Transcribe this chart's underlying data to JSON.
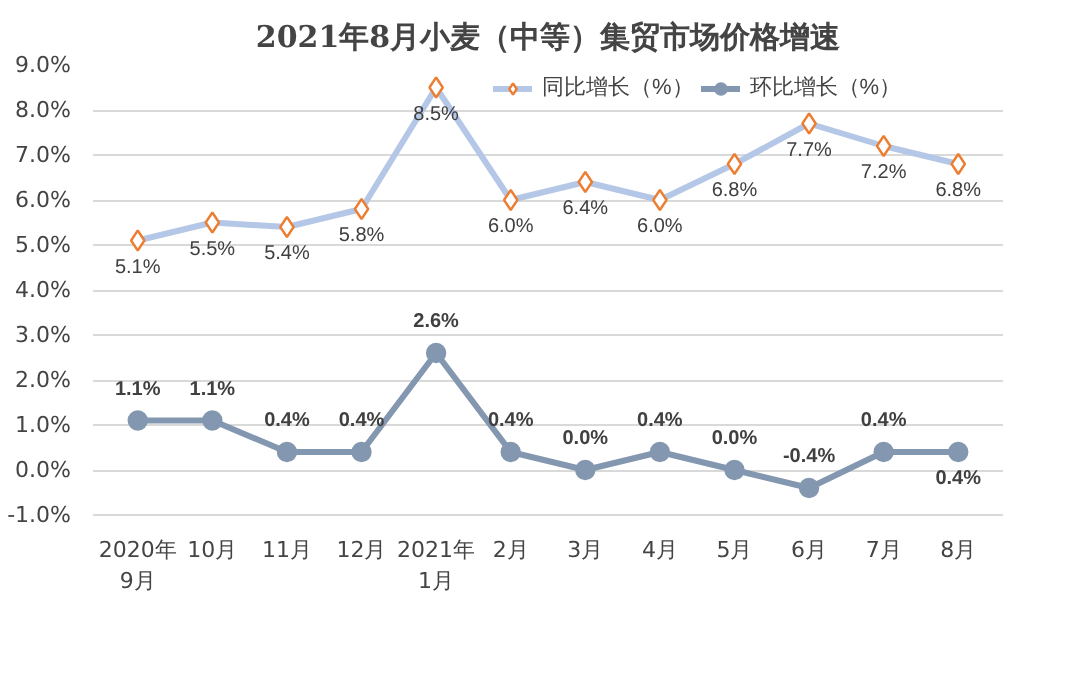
{
  "chart_data": {
    "type": "line",
    "title": "2021年8月小麦（中等）集贸市场价格增速",
    "categories": [
      "2020年\n9月",
      "10月",
      "11月",
      "12月",
      "2021年\n1月",
      "2月",
      "3月",
      "4月",
      "5月",
      "6月",
      "7月",
      "8月"
    ],
    "series": [
      {
        "name": "同比增长（%）",
        "color": "#b4c7e7",
        "marker": "diamond",
        "values": [
          5.1,
          5.5,
          5.4,
          5.8,
          8.5,
          6.0,
          6.4,
          6.0,
          6.8,
          7.7,
          7.2,
          6.8
        ],
        "value_labels": [
          "5.1%",
          "5.5%",
          "5.4%",
          "5.8%",
          "8.5%",
          "6.0%",
          "6.4%",
          "6.0%",
          "6.8%",
          "7.7%",
          "7.2%",
          "6.8%"
        ]
      },
      {
        "name": "环比增长（%）",
        "color": "#8497b0",
        "marker": "circle",
        "values": [
          1.1,
          1.1,
          0.4,
          0.4,
          2.6,
          0.4,
          0.0,
          0.4,
          0.0,
          -0.4,
          0.4,
          0.4
        ],
        "value_labels": [
          "1.1%",
          "1.1%",
          "0.4%",
          "0.4%",
          "2.6%",
          "0.4%",
          "0.0%",
          "0.4%",
          "0.0%",
          "-0.4%",
          "0.4%",
          "0.4%"
        ]
      }
    ],
    "ylim": [
      -1.0,
      9.0
    ],
    "yticks": [
      {
        "value": -1.0,
        "label": "-1.0%"
      },
      {
        "value": 0.0,
        "label": "0.0%"
      },
      {
        "value": 1.0,
        "label": "1.0%"
      },
      {
        "value": 2.0,
        "label": "2.0%"
      },
      {
        "value": 3.0,
        "label": "3.0%"
      },
      {
        "value": 4.0,
        "label": "4.0%"
      },
      {
        "value": 5.0,
        "label": "5.0%"
      },
      {
        "value": 6.0,
        "label": "6.0%"
      },
      {
        "value": 7.0,
        "label": "7.0%"
      },
      {
        "value": 8.0,
        "label": "8.0%"
      },
      {
        "value": 9.0,
        "label": "9.0%"
      }
    ],
    "grid": "y",
    "legend": "top"
  }
}
